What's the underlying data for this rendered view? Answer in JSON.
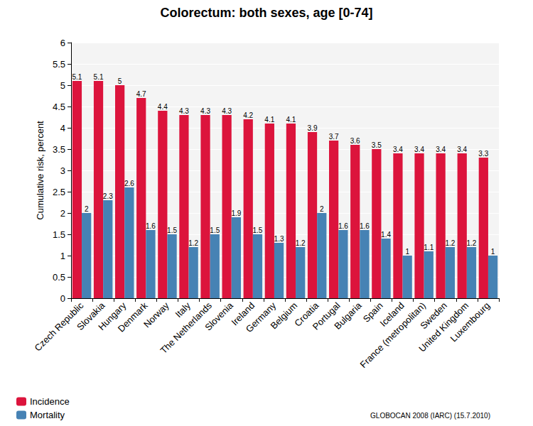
{
  "chart_data": {
    "type": "bar",
    "title": "Colorectum: both sexes, age [0-74]",
    "y_label": "Cumulative risk, percent",
    "categories": [
      "Czech Republic",
      "Slovakia",
      "Hungary",
      "Denmark",
      "Norway",
      "Italy",
      "The Netherlands",
      "Slovenia",
      "Ireland",
      "Germany",
      "Belgium",
      "Croatia",
      "Portugal",
      "Bulgaria",
      "Spain",
      "Iceland",
      "France (metropolitan)",
      "Sweden",
      "United Kingdom",
      "Luxembourg"
    ],
    "series": [
      {
        "name": "Incidence",
        "color": "#dc143c",
        "values": [
          5.1,
          5.1,
          5,
          4.7,
          4.4,
          4.3,
          4.3,
          4.3,
          4.2,
          4.1,
          4.1,
          3.9,
          3.7,
          3.6,
          3.5,
          3.4,
          3.4,
          3.4,
          3.4,
          3.3
        ]
      },
      {
        "name": "Mortality",
        "color": "#4682b4",
        "values": [
          2,
          2.3,
          2.6,
          1.6,
          1.5,
          1.2,
          1.5,
          1.9,
          1.5,
          1.3,
          1.2,
          2,
          1.6,
          1.6,
          1.4,
          1,
          1.1,
          1.2,
          1.2,
          1
        ]
      }
    ],
    "ylim": [
      0,
      6
    ],
    "yticks": [
      0,
      0.5,
      1,
      1.5,
      2,
      2.5,
      3,
      3.5,
      4,
      4.5,
      5,
      5.5,
      6
    ],
    "grid": true,
    "data_labels": true,
    "legend": "lower left",
    "annotations": [
      "GLOBOCAN 2008 (IARC) (15.7.2010)"
    ]
  }
}
